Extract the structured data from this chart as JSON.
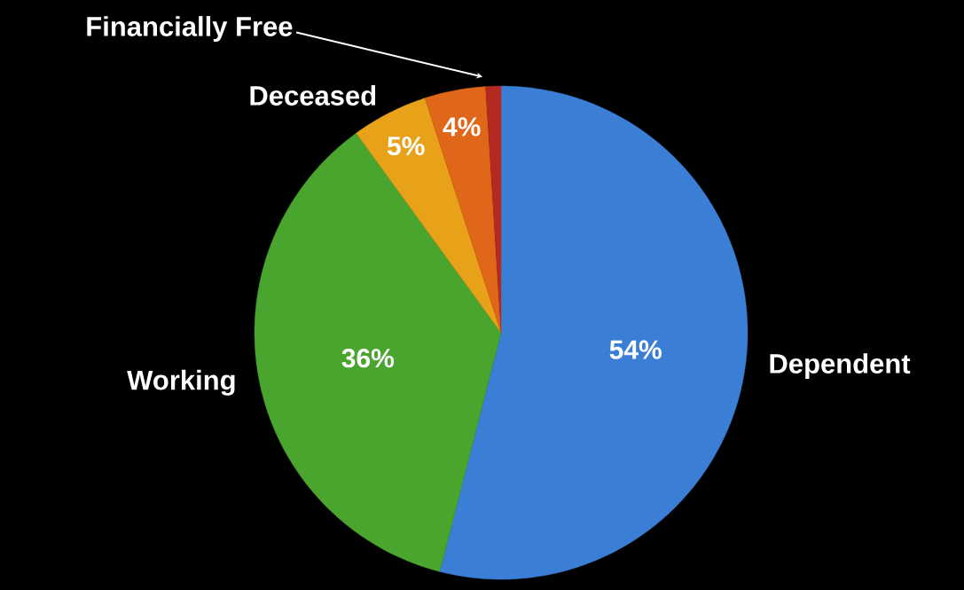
{
  "chart_data": {
    "type": "pie",
    "categories": [
      "Dependent",
      "Working",
      "Deceased",
      null,
      "Financially Free"
    ],
    "values": [
      54,
      36,
      5,
      4,
      1
    ],
    "value_labels": [
      "54%",
      "36%",
      "5%",
      "4%",
      null
    ],
    "colors": [
      "#3a7fd5",
      "#4aa52e",
      "#e8a21a",
      "#e0661a",
      "#b52a20"
    ]
  }
}
